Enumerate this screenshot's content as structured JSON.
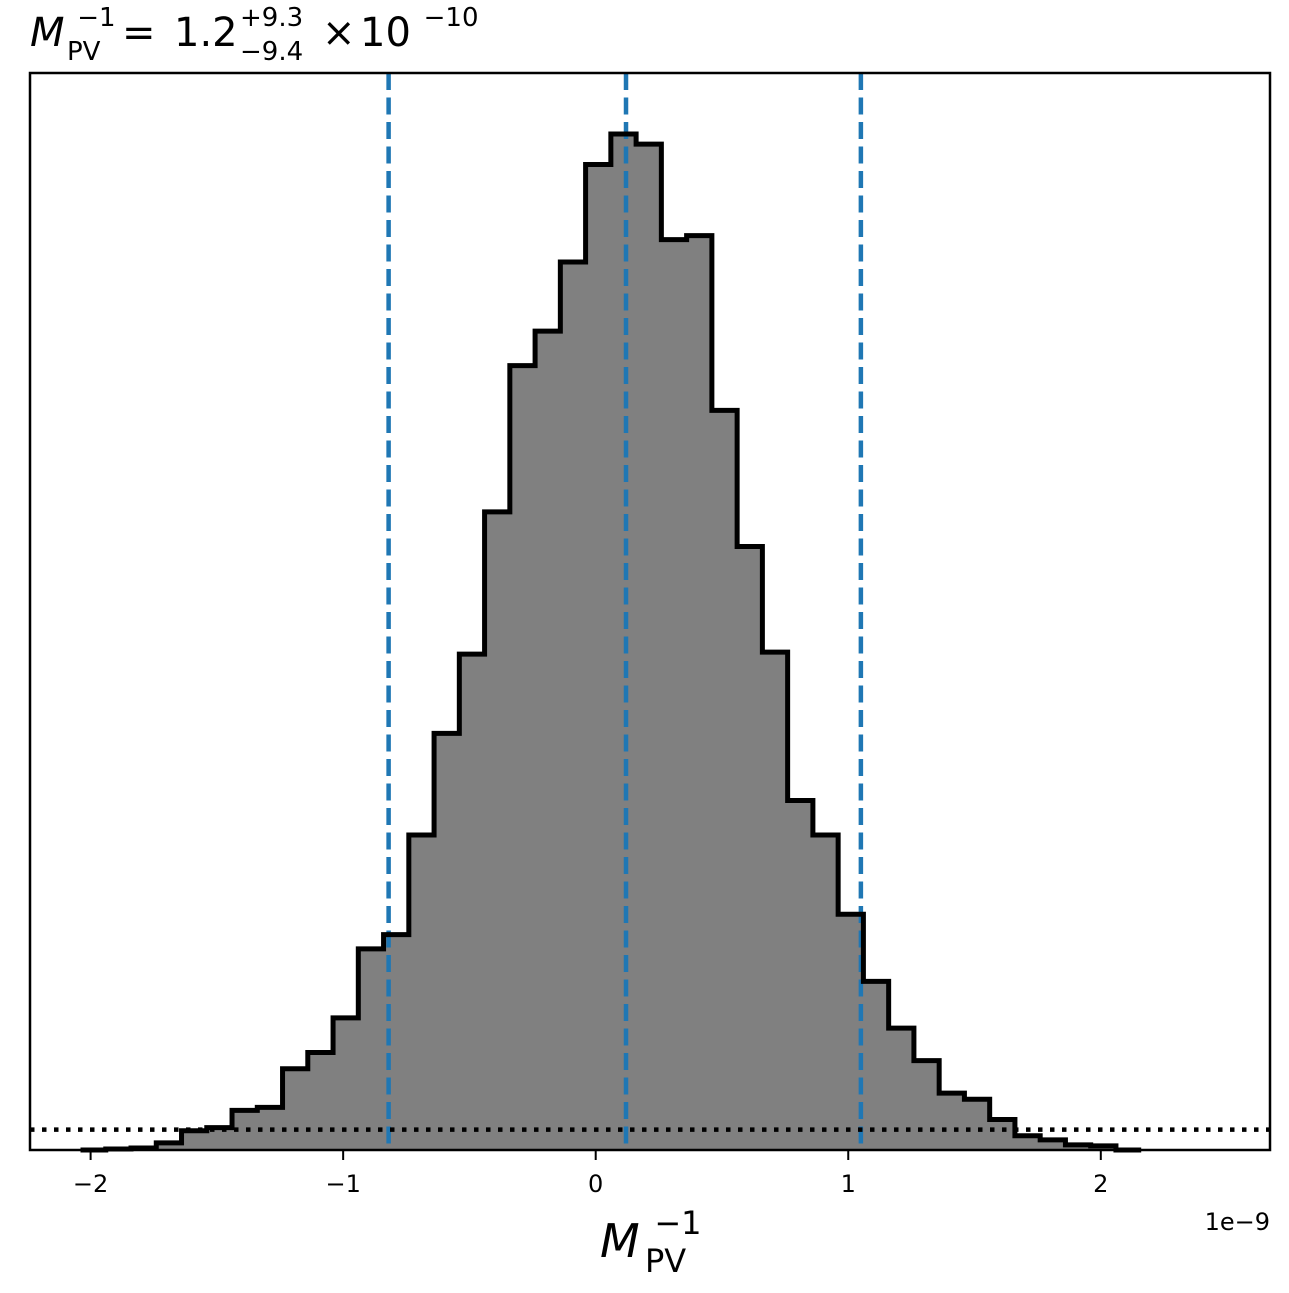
{
  "chart_data": {
    "type": "histogram",
    "title": {
      "symbol": "M",
      "symbol_sub": "PV",
      "symbol_sup": "−1",
      "equals": "=",
      "value": "1.2",
      "upper_err": "+9.3",
      "lower_err": "−9.4",
      "times": "×",
      "base": "10",
      "exponent": "−10"
    },
    "xlabel": {
      "symbol": "M",
      "sub": "PV",
      "sup": "−1"
    },
    "ylabel": "",
    "x_offset_label": "1e−9",
    "x_scale": 1e-09,
    "xlim": [
      -2.24,
      2.67
    ],
    "ylim": [
      0,
      1.06
    ],
    "xticks": [
      {
        "value": -2,
        "label": "−2"
      },
      {
        "value": -1,
        "label": "−1"
      },
      {
        "value": 0,
        "label": "0"
      },
      {
        "value": 1,
        "label": "1"
      },
      {
        "value": 2,
        "label": "2"
      }
    ],
    "bin_edges": [
      -2.04,
      -1.94,
      -1.84,
      -1.74,
      -1.64,
      -1.54,
      -1.44,
      -1.34,
      -1.24,
      -1.14,
      -1.04,
      -0.94,
      -0.84,
      -0.74,
      -0.64,
      -0.54,
      -0.44,
      -0.34,
      -0.24,
      -0.14,
      -0.04,
      0.06,
      0.16,
      0.26,
      0.36,
      0.46,
      0.56,
      0.66,
      0.76,
      0.86,
      0.96,
      1.06,
      1.16,
      1.26,
      1.36,
      1.46,
      1.56,
      1.66,
      1.76,
      1.86,
      1.96,
      2.06,
      2.16
    ],
    "counts": [
      0.0,
      0.001,
      0.002,
      0.007,
      0.019,
      0.022,
      0.039,
      0.042,
      0.08,
      0.096,
      0.13,
      0.198,
      0.212,
      0.31,
      0.41,
      0.488,
      0.628,
      0.772,
      0.806,
      0.874,
      0.97,
      1.0,
      0.99,
      0.896,
      0.9,
      0.728,
      0.594,
      0.49,
      0.344,
      0.31,
      0.232,
      0.166,
      0.12,
      0.088,
      0.056,
      0.05,
      0.03,
      0.014,
      0.01,
      0.005,
      0.004,
      0.0
    ],
    "fill_color": "#808080",
    "edge_color": "#000000",
    "reference_lines": [
      {
        "name": "lower-quantile",
        "x": -0.82,
        "style": "dashed",
        "color": "#1f77b4"
      },
      {
        "name": "median",
        "x": 0.12,
        "style": "dashed",
        "color": "#1f77b4"
      },
      {
        "name": "upper-quantile",
        "x": 1.05,
        "style": "dashed",
        "color": "#1f77b4"
      }
    ],
    "prior_level": {
      "y": 0.02,
      "style": "dotted",
      "color": "#000000"
    },
    "grid": false,
    "legend": "none"
  }
}
